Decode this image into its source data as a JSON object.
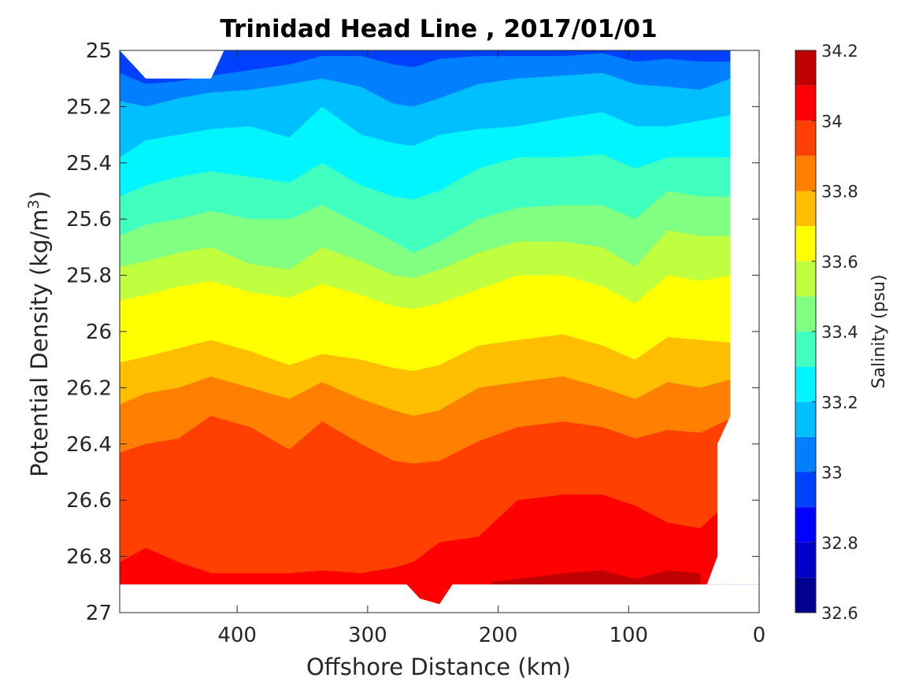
{
  "chart_data": {
    "type": "contour",
    "title": "Trinidad Head Line , 2017/01/01",
    "xlabel": "Offshore Distance (km)",
    "ylabel_main": "Potential Density (kg/m",
    "ylabel_sup": "3",
    "ylabel_close": ")",
    "xlim": [
      490,
      0
    ],
    "x_reversed": true,
    "x_ticks": [
      400,
      300,
      200,
      100,
      0
    ],
    "x_tick_labels": [
      "400",
      "300",
      "200",
      "100",
      "0"
    ],
    "ylim": [
      25,
      27
    ],
    "y_reversed": true,
    "y_ticks": [
      25,
      25.2,
      25.4,
      25.6,
      25.8,
      26,
      26.2,
      26.4,
      26.6,
      26.8,
      27
    ],
    "y_tick_labels": [
      "25",
      "25.2",
      "25.4",
      "25.6",
      "25.8",
      "26",
      "26.2",
      "26.4",
      "26.6",
      "26.8",
      "27"
    ],
    "colorbar": {
      "label": "Salinity (psu)",
      "range": [
        32.6,
        34.2
      ],
      "levels": [
        32.6,
        32.7,
        32.8,
        32.9,
        33.0,
        33.1,
        33.2,
        33.3,
        33.4,
        33.5,
        33.6,
        33.7,
        33.8,
        33.9,
        34.0,
        34.1,
        34.2
      ],
      "tick_values": [
        32.6,
        32.8,
        33.0,
        33.2,
        33.4,
        33.6,
        33.8,
        34.0,
        34.2
      ],
      "tick_labels": [
        "32.6",
        "32.8",
        "33",
        "33.2",
        "33.4",
        "33.6",
        "33.8",
        "34",
        "34.2"
      ],
      "colors": [
        "#00008f",
        "#0000c8",
        "#0000ff",
        "#0040ff",
        "#0080ff",
        "#00bfff",
        "#00f5ff",
        "#40ffbf",
        "#80ff80",
        "#bfff40",
        "#ffff00",
        "#ffbf00",
        "#ff8000",
        "#ff4000",
        "#ff0000",
        "#bf0000"
      ]
    },
    "isolines": [
      {
        "level": 33.0,
        "x": [
          490,
          470,
          445,
          420,
          390,
          360,
          335,
          305,
          280,
          265,
          245,
          215,
          185,
          150,
          120,
          95,
          70,
          45,
          22
        ],
        "y": [
          25.08,
          25.12,
          25.11,
          25.09,
          25.07,
          25.05,
          25.02,
          25.02,
          25.05,
          25.06,
          25.03,
          25.02,
          25.02,
          25.02,
          25.01,
          25.04,
          25.03,
          25.04,
          25.04
        ]
      },
      {
        "level": 33.1,
        "x": [
          490,
          470,
          445,
          420,
          390,
          360,
          335,
          305,
          280,
          265,
          245,
          215,
          185,
          150,
          120,
          95,
          70,
          45,
          22
        ],
        "y": [
          25.18,
          25.2,
          25.17,
          25.15,
          25.14,
          25.12,
          25.1,
          25.13,
          25.19,
          25.2,
          25.17,
          25.12,
          25.1,
          25.09,
          25.08,
          25.12,
          25.13,
          25.14,
          25.1
        ]
      },
      {
        "level": 33.2,
        "x": [
          490,
          470,
          445,
          420,
          390,
          360,
          335,
          305,
          280,
          265,
          245,
          215,
          185,
          150,
          120,
          95,
          70,
          45,
          22
        ],
        "y": [
          25.38,
          25.32,
          25.3,
          25.28,
          25.27,
          25.31,
          25.2,
          25.3,
          25.33,
          25.34,
          25.3,
          25.28,
          25.27,
          25.24,
          25.22,
          25.27,
          25.27,
          25.25,
          25.23
        ]
      },
      {
        "level": 33.3,
        "x": [
          490,
          470,
          445,
          420,
          390,
          360,
          335,
          305,
          280,
          265,
          245,
          215,
          185,
          150,
          120,
          95,
          70,
          45,
          22
        ],
        "y": [
          25.52,
          25.48,
          25.45,
          25.43,
          25.45,
          25.47,
          25.4,
          25.48,
          25.52,
          25.53,
          25.5,
          25.42,
          25.38,
          25.38,
          25.37,
          25.42,
          25.38,
          25.38,
          25.38
        ]
      },
      {
        "level": 33.4,
        "x": [
          490,
          470,
          445,
          420,
          390,
          360,
          335,
          305,
          280,
          265,
          245,
          215,
          185,
          150,
          120,
          95,
          70,
          45,
          22
        ],
        "y": [
          25.66,
          25.62,
          25.6,
          25.57,
          25.6,
          25.6,
          25.55,
          25.62,
          25.68,
          25.72,
          25.68,
          25.6,
          25.56,
          25.55,
          25.55,
          25.6,
          25.5,
          25.52,
          25.52
        ]
      },
      {
        "level": 33.5,
        "x": [
          490,
          470,
          445,
          420,
          390,
          360,
          335,
          305,
          280,
          265,
          245,
          215,
          185,
          150,
          120,
          95,
          70,
          45,
          22
        ],
        "y": [
          25.77,
          25.75,
          25.72,
          25.7,
          25.76,
          25.78,
          25.7,
          25.75,
          25.8,
          25.81,
          25.78,
          25.72,
          25.68,
          25.68,
          25.7,
          25.77,
          25.64,
          25.66,
          25.66
        ]
      },
      {
        "level": 33.6,
        "x": [
          490,
          470,
          445,
          420,
          390,
          360,
          335,
          305,
          280,
          265,
          245,
          215,
          185,
          150,
          120,
          95,
          70,
          45,
          22
        ],
        "y": [
          25.89,
          25.87,
          25.84,
          25.82,
          25.86,
          25.88,
          25.83,
          25.87,
          25.91,
          25.92,
          25.9,
          25.85,
          25.8,
          25.8,
          25.84,
          25.9,
          25.8,
          25.82,
          25.8
        ]
      },
      {
        "level": 33.7,
        "x": [
          490,
          470,
          445,
          420,
          390,
          360,
          335,
          305,
          280,
          265,
          245,
          215,
          185,
          150,
          120,
          95,
          70,
          45,
          22
        ],
        "y": [
          26.11,
          26.09,
          26.06,
          26.03,
          26.07,
          26.12,
          26.08,
          26.1,
          26.13,
          26.14,
          26.12,
          26.05,
          26.03,
          26.01,
          26.05,
          26.1,
          26.02,
          26.03,
          26.04
        ]
      },
      {
        "level": 33.8,
        "x": [
          490,
          470,
          445,
          420,
          390,
          360,
          335,
          305,
          280,
          265,
          245,
          215,
          185,
          150,
          120,
          95,
          70,
          45,
          22
        ],
        "y": [
          26.26,
          26.22,
          26.2,
          26.16,
          26.2,
          26.24,
          26.18,
          26.24,
          26.28,
          26.3,
          26.28,
          26.2,
          26.18,
          26.16,
          26.2,
          26.24,
          26.18,
          26.2,
          26.17
        ]
      },
      {
        "level": 33.9,
        "x": [
          490,
          470,
          445,
          420,
          390,
          360,
          335,
          305,
          280,
          265,
          245,
          215,
          185,
          150,
          120,
          95,
          70,
          45,
          22
        ],
        "y": [
          26.43,
          26.4,
          26.38,
          26.3,
          26.34,
          26.42,
          26.32,
          26.4,
          26.46,
          26.47,
          26.46,
          26.39,
          26.34,
          26.32,
          26.34,
          26.38,
          26.35,
          26.36,
          26.31
        ]
      },
      {
        "level": 34.0,
        "x": [
          490,
          470,
          445,
          420,
          390,
          360,
          335,
          305,
          280,
          265,
          245,
          215,
          185,
          150,
          120,
          95,
          70,
          45,
          22
        ],
        "y": [
          26.82,
          26.77,
          26.82,
          26.86,
          26.86,
          26.86,
          26.85,
          26.86,
          26.84,
          26.82,
          26.75,
          26.73,
          26.6,
          26.58,
          26.58,
          26.62,
          26.68,
          26.7,
          26.6
        ]
      },
      {
        "level": 34.1,
        "x": [
          205,
          185,
          150,
          120,
          95,
          70,
          45
        ],
        "y": [
          26.89,
          26.88,
          26.86,
          26.85,
          26.88,
          26.85,
          26.86
        ]
      }
    ],
    "data_masks": [
      {
        "x": [
          490,
          470,
          420,
          410,
          490
        ],
        "y": [
          25,
          25.1,
          25.1,
          25,
          25
        ]
      },
      {
        "x": [
          490,
          270,
          260,
          245,
          235,
          0,
          0,
          490
        ],
        "y": [
          26.9,
          26.9,
          26.95,
          26.97,
          26.9,
          26.9,
          27,
          27
        ]
      },
      {
        "x": [
          0,
          22,
          22,
          32,
          32,
          40,
          0
        ],
        "y": [
          25,
          25,
          26.3,
          26.4,
          26.8,
          26.9,
          26.9
        ]
      }
    ]
  }
}
